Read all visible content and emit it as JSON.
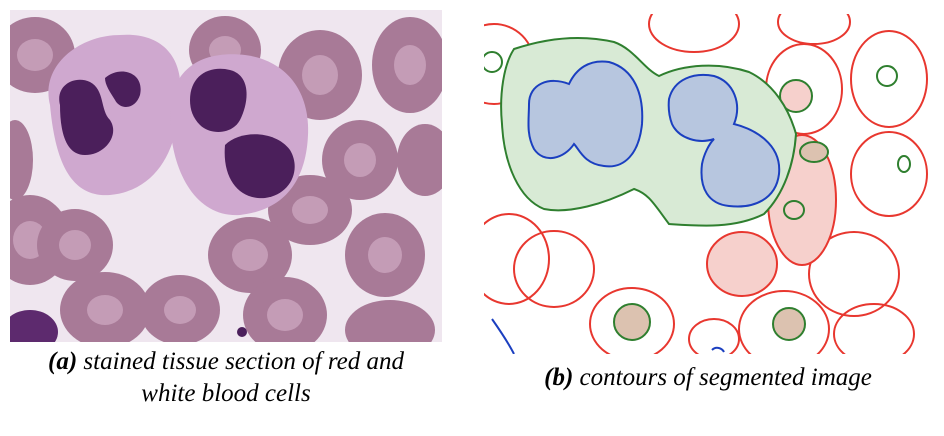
{
  "figure": {
    "panel_a": {
      "label": "(a)",
      "caption": "stained tissue section of red and white blood cells",
      "caption_line1": "stained tissue section of red and",
      "caption_line2": "white blood cells"
    },
    "panel_b": {
      "label": "(b)",
      "caption": "contours of segmented image"
    },
    "colors": {
      "background_stain": "#efe6ef",
      "red_cell": "#a87a97",
      "red_cell_center": "#c49cb6",
      "wbc_cytoplasm": "#cfa8cf",
      "wbc_nucleus": "#4b1f5b",
      "contour_red": "#e8372f",
      "contour_green": "#2f7f2f",
      "contour_blue": "#1b3fc0",
      "fill_green": "#d8ead5",
      "fill_blue": "#b7c6df",
      "fill_red": "#f6d0cc",
      "fill_tan": "#dcc2b0"
    }
  }
}
